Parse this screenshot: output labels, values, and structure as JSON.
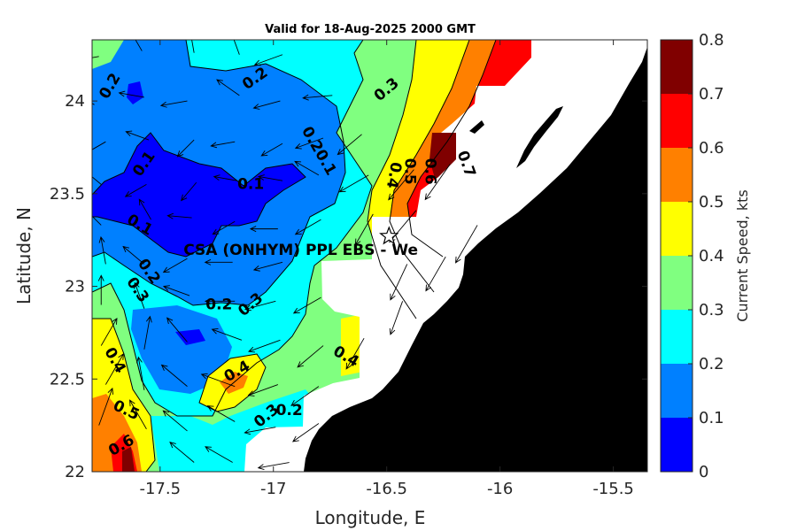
{
  "title": "Valid for 18-Aug-2025 2000 GMT",
  "xlabel": "Longitude, E",
  "ylabel": "Latitude, N",
  "colorbar_label": "Current Speed, kts",
  "site_label": "CSA (ONHYM) PPL EBS - We",
  "colors": {
    "land": "#000000",
    "nodata": "#ffffff",
    "levels": [
      "#0000ff",
      "#0080ff",
      "#00ffff",
      "#80ff80",
      "#ffff00",
      "#ff8000",
      "#ff0000",
      "#800000"
    ]
  },
  "chart_data": {
    "type": "heatmap",
    "xlim": [
      -17.8,
      -15.35
    ],
    "ylim": [
      22.0,
      24.33
    ],
    "xticks": [
      "-17.5",
      "-17",
      "-16.5",
      "-16",
      "-15.5"
    ],
    "xtick_values": [
      -17.5,
      -17.0,
      -16.5,
      -16.0,
      -15.5
    ],
    "yticks": [
      "22",
      "22.5",
      "23",
      "23.5",
      "24"
    ],
    "ytick_values": [
      22.0,
      22.5,
      23.0,
      23.5,
      24.0
    ],
    "colorbar": {
      "ticks": [
        "0",
        "0.1",
        "0.2",
        "0.3",
        "0.4",
        "0.5",
        "0.6",
        "0.7",
        "0.8"
      ],
      "levels": [
        0,
        0.1,
        0.2,
        0.3,
        0.4,
        0.5,
        0.6,
        0.7,
        0.8
      ]
    },
    "contour_labels": [
      {
        "text": "0.2",
        "lon": -17.72,
        "lat": 24.08,
        "rot": -60
      },
      {
        "text": "0.2",
        "lon": -17.08,
        "lat": 24.12,
        "rot": -35
      },
      {
        "text": "0.3",
        "lon": -16.5,
        "lat": 24.06,
        "rot": -40
      },
      {
        "text": "0.1",
        "lon": -17.57,
        "lat": 23.66,
        "rot": -55
      },
      {
        "text": "0.20.1",
        "lon": -16.8,
        "lat": 23.73,
        "rot": 60
      },
      {
        "text": "0.1",
        "lon": -17.1,
        "lat": 23.55,
        "rot": 0
      },
      {
        "text": "0.1",
        "lon": -17.59,
        "lat": 23.33,
        "rot": 30
      },
      {
        "text": "0.4",
        "lon": -16.47,
        "lat": 23.6,
        "rot": 100
      },
      {
        "text": "0.5",
        "lon": -16.4,
        "lat": 23.62,
        "rot": 90
      },
      {
        "text": "0.6",
        "lon": -16.31,
        "lat": 23.62,
        "rot": 90
      },
      {
        "text": "0.7",
        "lon": -16.15,
        "lat": 23.66,
        "rot": 70
      },
      {
        "text": "0.2",
        "lon": -17.55,
        "lat": 23.08,
        "rot": 55
      },
      {
        "text": "0.3",
        "lon": -17.6,
        "lat": 22.98,
        "rot": 55
      },
      {
        "text": "0.2",
        "lon": -17.24,
        "lat": 22.9,
        "rot": 0
      },
      {
        "text": "0.3",
        "lon": -17.1,
        "lat": 22.9,
        "rot": -40
      },
      {
        "text": "0.4",
        "lon": -17.7,
        "lat": 22.6,
        "rot": 60
      },
      {
        "text": "0.4",
        "lon": -16.68,
        "lat": 22.62,
        "rot": 30
      },
      {
        "text": "0.4",
        "lon": -17.16,
        "lat": 22.54,
        "rot": -30
      },
      {
        "text": "0.5",
        "lon": -17.65,
        "lat": 22.33,
        "rot": 25
      },
      {
        "text": "0.3",
        "lon": -17.03,
        "lat": 22.3,
        "rot": -40
      },
      {
        "text": "0.2",
        "lon": -16.93,
        "lat": 22.33,
        "rot": 0
      },
      {
        "text": "0.6",
        "lon": -17.67,
        "lat": 22.14,
        "rot": -30
      }
    ],
    "site": {
      "lon": -16.49,
      "lat": 23.27
    },
    "arrows": [
      [
        -17.77,
        24.24,
        -170,
        0.2
      ],
      [
        -17.58,
        24.27,
        120,
        0.15
      ],
      [
        -17.35,
        24.26,
        100,
        0.15
      ],
      [
        -17.15,
        24.25,
        110,
        0.2
      ],
      [
        -16.96,
        24.25,
        200,
        0.25
      ],
      [
        -17.79,
        23.98,
        150,
        0.2
      ],
      [
        -17.57,
        24.02,
        170,
        0.15
      ],
      [
        -17.38,
        24.0,
        -170,
        0.18
      ],
      [
        -17.15,
        24.03,
        145,
        0.2
      ],
      [
        -16.97,
        24.0,
        -165,
        0.2
      ],
      [
        -16.74,
        24.03,
        -175,
        0.25
      ],
      [
        -17.74,
        23.78,
        210,
        0.12
      ],
      [
        -17.55,
        23.79,
        160,
        0.12
      ],
      [
        -17.35,
        23.79,
        225,
        0.1
      ],
      [
        -17.17,
        23.78,
        190,
        0.12
      ],
      [
        -16.96,
        23.77,
        210,
        0.12
      ],
      [
        -16.78,
        23.8,
        200,
        0.25
      ],
      [
        -16.61,
        23.82,
        220,
        0.3
      ],
      [
        -17.76,
        23.55,
        140,
        0.1
      ],
      [
        -17.56,
        23.55,
        210,
        0.12
      ],
      [
        -17.34,
        23.56,
        230,
        0.1
      ],
      [
        -17.16,
        23.57,
        170,
        0.1
      ],
      [
        -16.96,
        23.57,
        170,
        0.12
      ],
      [
        -16.8,
        23.6,
        150,
        0.2
      ],
      [
        -16.58,
        23.6,
        210,
        0.35
      ],
      [
        -16.38,
        23.63,
        230,
        0.5
      ],
      [
        -16.22,
        23.66,
        235,
        0.6
      ],
      [
        -17.76,
        23.33,
        135,
        0.1
      ],
      [
        -17.54,
        23.36,
        120,
        0.1
      ],
      [
        -17.36,
        23.37,
        175,
        0.12
      ],
      [
        -17.17,
        23.35,
        210,
        0.15
      ],
      [
        -16.98,
        23.31,
        180,
        0.2
      ],
      [
        -16.79,
        23.36,
        210,
        0.25
      ],
      [
        -16.56,
        23.39,
        240,
        0.4
      ],
      [
        -16.37,
        23.41,
        230,
        0.55
      ],
      [
        -17.74,
        23.12,
        100,
        0.2
      ],
      [
        -17.57,
        23.12,
        140,
        0.2
      ],
      [
        -17.38,
        23.15,
        210,
        0.2
      ],
      [
        -17.18,
        23.13,
        180,
        0.2
      ],
      [
        -16.96,
        23.13,
        195,
        0.25
      ],
      [
        -16.41,
        23.12,
        245,
        0.5
      ],
      [
        -16.24,
        23.16,
        240,
        0.5
      ],
      [
        -16.1,
        23.33,
        240,
        0.6
      ],
      [
        -17.76,
        22.9,
        90,
        0.25
      ],
      [
        -17.57,
        22.88,
        110,
        0.2
      ],
      [
        -17.37,
        22.95,
        160,
        0.2
      ],
      [
        -17.17,
        22.92,
        180,
        0.25
      ],
      [
        -16.99,
        22.92,
        195,
        0.3
      ],
      [
        -16.79,
        22.94,
        210,
        0.3
      ],
      [
        -16.43,
        22.92,
        250,
        0.4
      ],
      [
        -17.76,
        22.68,
        60,
        0.3
      ],
      [
        -17.57,
        22.66,
        80,
        0.35
      ],
      [
        -17.38,
        22.7,
        130,
        0.3
      ],
      [
        -17.14,
        22.71,
        160,
        0.3
      ],
      [
        -16.97,
        22.71,
        200,
        0.35
      ],
      [
        -16.78,
        22.68,
        220,
        0.35
      ],
      [
        -16.6,
        22.72,
        240,
        0.4
      ],
      [
        -17.74,
        22.47,
        60,
        0.4
      ],
      [
        -17.57,
        22.44,
        100,
        0.35
      ],
      [
        -17.38,
        22.46,
        140,
        0.35
      ],
      [
        -17.17,
        22.46,
        160,
        0.4
      ],
      [
        -16.98,
        22.47,
        200,
        0.3
      ],
      [
        -16.8,
        22.46,
        215,
        0.35
      ],
      [
        -17.77,
        22.25,
        70,
        0.5
      ],
      [
        -17.56,
        22.23,
        120,
        0.35
      ],
      [
        -17.38,
        22.22,
        140,
        0.3
      ],
      [
        -17.17,
        22.27,
        150,
        0.3
      ],
      [
        -16.99,
        22.24,
        190,
        0.3
      ],
      [
        -16.8,
        22.26,
        215,
        0.3
      ],
      [
        -17.35,
        22.05,
        140,
        0.3
      ],
      [
        -17.18,
        22.05,
        150,
        0.3
      ],
      [
        -16.93,
        22.05,
        190,
        0.3
      ],
      [
        -16.77,
        22.05,
        210,
        0.3
      ]
    ]
  }
}
